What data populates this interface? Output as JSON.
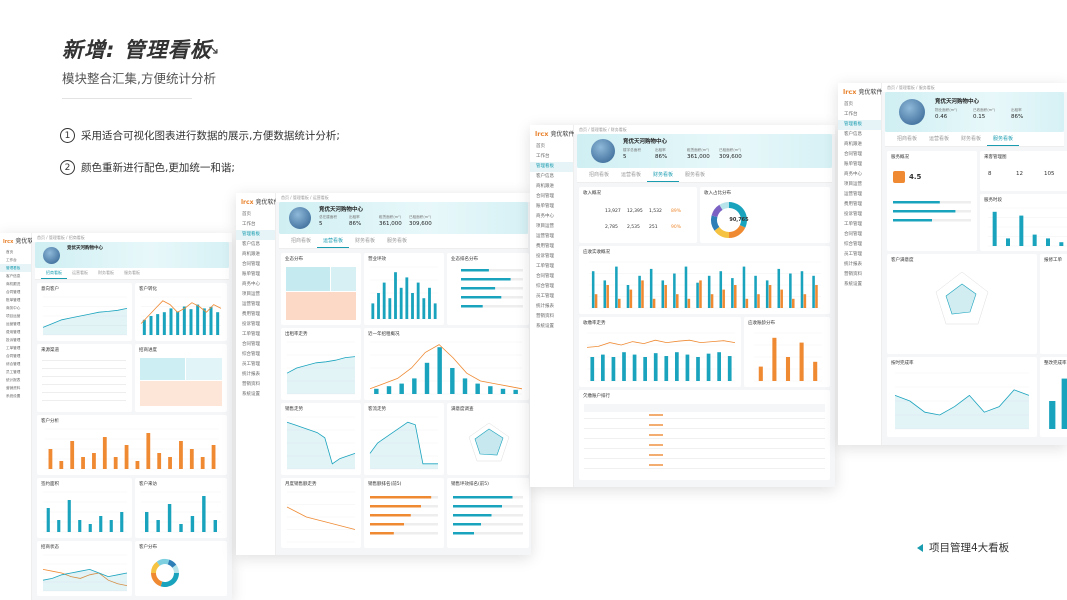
{
  "header": {
    "title": "新增: 管理看板",
    "subtitle": "模块整合汇集,方便统计分析",
    "notes": [
      {
        "num": "1",
        "text": "采用适合可视化图表进行数据的展示,方便数据统计分析;"
      },
      {
        "num": "2",
        "text": "颜色重新进行配色,更加统一和谐;"
      }
    ]
  },
  "footer": {
    "text": "项目管理4大看板"
  },
  "app": {
    "logo": "lrcx",
    "logo_sub": "竞优软件",
    "project_name": "竞优天河购物中心",
    "tabs": [
      "招商看板",
      "运营看板",
      "财务看板",
      "服务看板"
    ],
    "menu": [
      "首页",
      "工作台",
      "管理看板",
      "客户信息",
      "商机跟进",
      "合同管理",
      "账单管理",
      "商务中心",
      "项目运营",
      "运营管理",
      "费用管理",
      "投诉管理",
      "工单管理",
      "合同管理",
      "综合管理",
      "员工管理",
      "统计报表",
      "营销资料",
      "系统设置"
    ]
  },
  "colors": {
    "accent": "#1aa3bd",
    "orange": "#ef8a33",
    "light_accent": "#cfeff3"
  },
  "screens": {
    "s1": {
      "tab_active": 0,
      "cards": [
        "意向客户",
        "客户转化",
        "来源渠道",
        "招商进度",
        "客户分析",
        "签约面积",
        "客户来访",
        "招商状态"
      ]
    },
    "s2": {
      "tab_active": 1,
      "stats": [
        {
          "label": "总在建面积",
          "value": "5"
        },
        {
          "label": "出租率",
          "value": "86%"
        },
        {
          "label": "租赁面积(m²)",
          "value": "361,000"
        },
        {
          "label": "已租面积(m²)",
          "value": "309,600"
        }
      ],
      "cards": [
        "业态分布",
        "营业坪效",
        "业态排名分布",
        "出租率走势",
        "近一年招租概况",
        "销售走势",
        "客流走势",
        "满意度调查",
        "月度销售额走势",
        "销售额排名(前5)",
        "销售坪效排名(前5)"
      ]
    },
    "s3": {
      "tab_active": 2,
      "stats": [
        {
          "label": "楼宇总面积",
          "value": "5"
        },
        {
          "label": "出租率",
          "value": "86%"
        },
        {
          "label": "租赁面积(m²)",
          "value": "361,000"
        },
        {
          "label": "已租面积(m²)",
          "value": "309,600"
        }
      ],
      "income_values": [
        "13,927",
        "12,395",
        "1,532",
        "89%",
        "2,785",
        "2,535",
        "251",
        "90%"
      ],
      "donut_center": "90,765",
      "cards": [
        "收入概况",
        "收入占比分布",
        "应收实收概况",
        "收缴率走势",
        "应收账龄分布",
        "欠缴账户排行"
      ]
    },
    "s4": {
      "tab_active": 3,
      "stats": [
        {
          "label": "物业面积(m²)",
          "value": "0.46"
        },
        {
          "label": "已收面积(m²)",
          "value": "0.15"
        },
        {
          "label": "出租率",
          "value": "86%"
        }
      ],
      "score": "4.5",
      "dev_values": [
        "8",
        "12",
        "105"
      ],
      "cards": [
        "服务概况",
        "来客管理图",
        "服务时段",
        "客户满意度",
        "报修工单",
        "按时完成率",
        "整改完成率"
      ]
    }
  }
}
